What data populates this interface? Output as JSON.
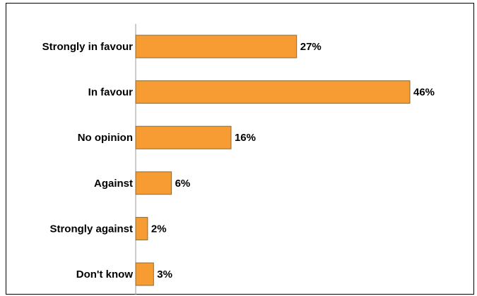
{
  "chart_data": {
    "type": "bar",
    "orientation": "horizontal",
    "categories": [
      "Strongly in favour",
      "In favour",
      "No opinion",
      "Against",
      "Strongly against",
      "Don't know"
    ],
    "values": [
      27,
      46,
      16,
      6,
      2,
      3
    ],
    "value_labels": [
      "27%",
      "46%",
      "16%",
      "6%",
      "2%",
      "3%"
    ],
    "unit": "%",
    "xlim": [
      0,
      46
    ],
    "grid": false,
    "legend": "none",
    "bar_color": "#F79B33",
    "bar_edge_color": "#8A6A3A"
  }
}
